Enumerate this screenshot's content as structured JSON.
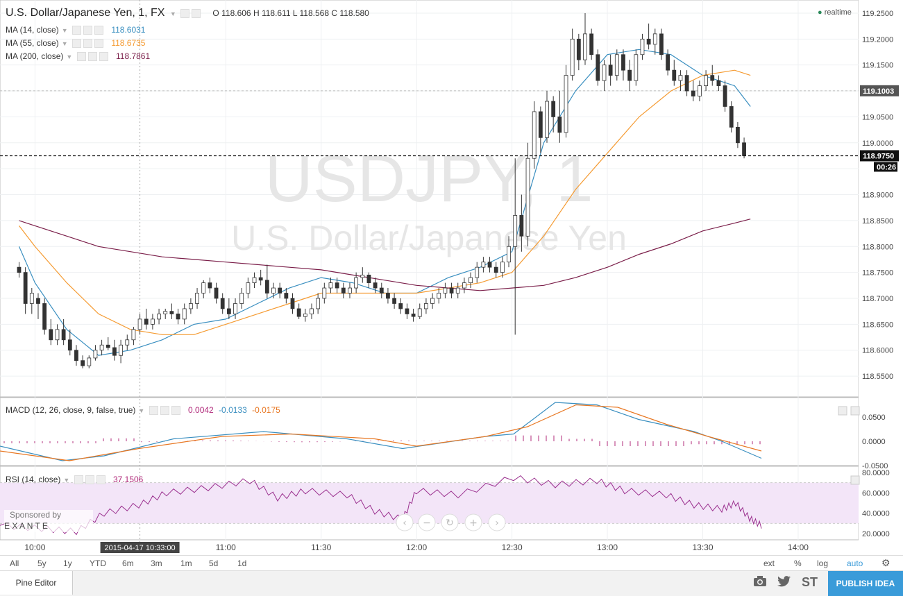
{
  "header": {
    "symbol_title": "U.S. Dollar/Japanese Yen, 1, FX",
    "ohlc": [
      {
        "k": "O",
        "v": "118.606"
      },
      {
        "k": "H",
        "v": "118.611"
      },
      {
        "k": "L",
        "v": "118.568"
      },
      {
        "k": "C",
        "v": "118.580"
      }
    ],
    "realtime_label": "realtime"
  },
  "indicators": [
    {
      "label": "MA (14, close)",
      "value": "118.6031",
      "color": "#3a8fc0"
    },
    {
      "label": "MA (55, close)",
      "value": "118.6735",
      "color": "#f59b32"
    },
    {
      "label": "MA (200, close)",
      "value": "118.7861",
      "color": "#7b1f4a"
    }
  ],
  "watermark": {
    "symbol": "USDJPY, 1",
    "name": "U.S. Dollar/Japanese Yen"
  },
  "price_axis": {
    "ticks": [
      "119.2500",
      "119.2000",
      "119.1500",
      "119.1003",
      "119.0500",
      "119.0000",
      "118.9750",
      "118.9000",
      "118.8500",
      "118.8000",
      "118.7500",
      "118.7000",
      "118.6500",
      "118.6000",
      "118.5500"
    ],
    "highlight_level": "119.1003",
    "last_price": "118.9750",
    "countdown": "00:26"
  },
  "macd": {
    "label": "MACD (12, 26, close, 9, false, true)",
    "values": [
      "0.0042",
      "-0.0133",
      "-0.0175"
    ],
    "colors": [
      "#b0297a",
      "#3a8fc0",
      "#e87722"
    ],
    "ticks": [
      "0.0500",
      "0.0000",
      "-0.0500"
    ]
  },
  "rsi": {
    "label": "RSI (14, close)",
    "value": "37.1506",
    "ticks": [
      "80.0000",
      "60.0000",
      "40.0000",
      "20.0000"
    ]
  },
  "sponsor": {
    "text": "Sponsored by",
    "brand": "E X A N T E"
  },
  "time_axis": {
    "ticks": [
      "10:00",
      "11:00",
      "11:30",
      "12:00",
      "12:30",
      "13:00",
      "13:30",
      "14:00"
    ],
    "cursor_label": "2015-04-17 10:33:00"
  },
  "ranges": [
    "All",
    "5y",
    "1y",
    "YTD",
    "6m",
    "3m",
    "1m",
    "5d",
    "1d"
  ],
  "right_options": [
    "ext",
    "%",
    "log",
    "auto"
  ],
  "bottom": {
    "pine_editor": "Pine Editor",
    "st_label": "ST",
    "publish": "PUBLISH IDEA"
  },
  "chart_data": {
    "type": "candlestick",
    "title": "U.S. Dollar/Japanese Yen, 1, FX",
    "ylim": [
      118.51,
      119.27
    ],
    "series": [
      {
        "name": "MA (14, close)",
        "x": [
          "09:55",
          "10:00",
          "10:10",
          "10:20",
          "10:30",
          "10:40",
          "10:50",
          "11:00",
          "11:10",
          "11:20",
          "11:30",
          "11:40",
          "11:50",
          "12:00",
          "12:10",
          "12:20",
          "12:30",
          "12:40",
          "12:50",
          "13:00",
          "13:10",
          "13:20",
          "13:30",
          "13:40",
          "13:45"
        ],
        "values": [
          118.8,
          118.73,
          118.64,
          118.59,
          118.6,
          118.62,
          118.65,
          118.66,
          118.69,
          118.72,
          118.74,
          118.73,
          118.71,
          118.71,
          118.74,
          118.76,
          118.79,
          119.0,
          119.1,
          119.17,
          119.18,
          119.17,
          119.13,
          119.11,
          119.07
        ]
      },
      {
        "name": "MA (55, close)",
        "x": [
          "09:55",
          "10:00",
          "10:10",
          "10:20",
          "10:30",
          "10:40",
          "10:50",
          "11:00",
          "11:10",
          "11:20",
          "11:30",
          "11:40",
          "11:50",
          "12:00",
          "12:10",
          "12:20",
          "12:30",
          "12:40",
          "12:50",
          "13:00",
          "13:10",
          "13:20",
          "13:30",
          "13:40",
          "13:45"
        ],
        "values": [
          118.84,
          118.8,
          118.73,
          118.67,
          118.64,
          118.63,
          118.63,
          118.65,
          118.67,
          118.69,
          118.71,
          118.71,
          118.71,
          118.71,
          118.72,
          118.73,
          118.75,
          118.82,
          118.91,
          118.98,
          119.05,
          119.1,
          119.13,
          119.14,
          119.13
        ]
      },
      {
        "name": "MA (200, close)",
        "x": [
          "09:55",
          "10:00",
          "10:10",
          "10:20",
          "10:30",
          "10:40",
          "10:50",
          "11:00",
          "11:10",
          "11:20",
          "11:30",
          "11:40",
          "11:50",
          "12:00",
          "12:10",
          "12:20",
          "12:30",
          "12:40",
          "12:50",
          "13:00",
          "13:10",
          "13:20",
          "13:30",
          "13:40",
          "13:45"
        ],
        "values": [
          118.85,
          118.84,
          118.82,
          118.8,
          118.79,
          118.78,
          118.775,
          118.77,
          118.765,
          118.76,
          118.755,
          118.745,
          118.735,
          118.725,
          118.72,
          118.715,
          118.72,
          118.725,
          118.74,
          118.76,
          118.785,
          118.805,
          118.83,
          118.845,
          118.853
        ]
      }
    ],
    "candles": [
      {
        "t": "09:55",
        "o": 118.76,
        "h": 118.77,
        "l": 118.74,
        "c": 118.75
      },
      {
        "t": "09:57",
        "o": 118.75,
        "h": 118.76,
        "l": 118.67,
        "c": 118.69
      },
      {
        "t": "09:59",
        "o": 118.69,
        "h": 118.72,
        "l": 118.67,
        "c": 118.71
      },
      {
        "t": "10:01",
        "o": 118.7,
        "h": 118.71,
        "l": 118.66,
        "c": 118.69
      },
      {
        "t": "10:03",
        "o": 118.69,
        "h": 118.7,
        "l": 118.63,
        "c": 118.64
      },
      {
        "t": "10:05",
        "o": 118.64,
        "h": 118.66,
        "l": 118.61,
        "c": 118.62
      },
      {
        "t": "10:07",
        "o": 118.62,
        "h": 118.65,
        "l": 118.61,
        "c": 118.64
      },
      {
        "t": "10:09",
        "o": 118.64,
        "h": 118.66,
        "l": 118.61,
        "c": 118.62
      },
      {
        "t": "10:11",
        "o": 118.62,
        "h": 118.64,
        "l": 118.59,
        "c": 118.6
      },
      {
        "t": "10:13",
        "o": 118.6,
        "h": 118.61,
        "l": 118.57,
        "c": 118.58
      },
      {
        "t": "10:15",
        "o": 118.58,
        "h": 118.59,
        "l": 118.565,
        "c": 118.57
      },
      {
        "t": "10:17",
        "o": 118.57,
        "h": 118.59,
        "l": 118.565,
        "c": 118.585
      },
      {
        "t": "10:19",
        "o": 118.585,
        "h": 118.61,
        "l": 118.58,
        "c": 118.6
      },
      {
        "t": "10:21",
        "o": 118.6,
        "h": 118.62,
        "l": 118.59,
        "c": 118.61
      },
      {
        "t": "10:23",
        "o": 118.61,
        "h": 118.625,
        "l": 118.6,
        "c": 118.605
      },
      {
        "t": "10:25",
        "o": 118.605,
        "h": 118.62,
        "l": 118.58,
        "c": 118.59
      },
      {
        "t": "10:27",
        "o": 118.59,
        "h": 118.62,
        "l": 118.575,
        "c": 118.61
      },
      {
        "t": "10:29",
        "o": 118.61,
        "h": 118.63,
        "l": 118.6,
        "c": 118.62
      },
      {
        "t": "10:31",
        "o": 118.62,
        "h": 118.645,
        "l": 118.61,
        "c": 118.64
      },
      {
        "t": "10:33",
        "o": 118.64,
        "h": 118.67,
        "l": 118.63,
        "c": 118.66
      },
      {
        "t": "10:35",
        "o": 118.66,
        "h": 118.68,
        "l": 118.64,
        "c": 118.65
      },
      {
        "t": "10:37",
        "o": 118.65,
        "h": 118.67,
        "l": 118.64,
        "c": 118.66
      },
      {
        "t": "10:39",
        "o": 118.66,
        "h": 118.68,
        "l": 118.65,
        "c": 118.67
      },
      {
        "t": "10:41",
        "o": 118.67,
        "h": 118.68,
        "l": 118.66,
        "c": 118.675
      },
      {
        "t": "10:43",
        "o": 118.675,
        "h": 118.69,
        "l": 118.66,
        "c": 118.67
      },
      {
        "t": "10:45",
        "o": 118.67,
        "h": 118.68,
        "l": 118.65,
        "c": 118.66
      },
      {
        "t": "10:47",
        "o": 118.66,
        "h": 118.69,
        "l": 118.65,
        "c": 118.68
      },
      {
        "t": "10:49",
        "o": 118.68,
        "h": 118.7,
        "l": 118.67,
        "c": 118.69
      },
      {
        "t": "10:51",
        "o": 118.69,
        "h": 118.72,
        "l": 118.68,
        "c": 118.71
      },
      {
        "t": "10:53",
        "o": 118.71,
        "h": 118.735,
        "l": 118.7,
        "c": 118.73
      },
      {
        "t": "10:55",
        "o": 118.73,
        "h": 118.74,
        "l": 118.71,
        "c": 118.72
      },
      {
        "t": "10:57",
        "o": 118.72,
        "h": 118.73,
        "l": 118.69,
        "c": 118.7
      },
      {
        "t": "10:59",
        "o": 118.7,
        "h": 118.71,
        "l": 118.67,
        "c": 118.68
      },
      {
        "t": "11:01",
        "o": 118.68,
        "h": 118.7,
        "l": 118.66,
        "c": 118.67
      },
      {
        "t": "11:03",
        "o": 118.67,
        "h": 118.7,
        "l": 118.66,
        "c": 118.69
      },
      {
        "t": "11:05",
        "o": 118.69,
        "h": 118.72,
        "l": 118.68,
        "c": 118.71
      },
      {
        "t": "11:07",
        "o": 118.71,
        "h": 118.74,
        "l": 118.7,
        "c": 118.73
      },
      {
        "t": "11:09",
        "o": 118.73,
        "h": 118.75,
        "l": 118.72,
        "c": 118.74
      },
      {
        "t": "11:11",
        "o": 118.74,
        "h": 118.755,
        "l": 118.725,
        "c": 118.735
      },
      {
        "t": "11:13",
        "o": 118.735,
        "h": 118.765,
        "l": 118.7,
        "c": 118.71
      },
      {
        "t": "11:15",
        "o": 118.71,
        "h": 118.73,
        "l": 118.7,
        "c": 118.72
      },
      {
        "t": "11:17",
        "o": 118.72,
        "h": 118.73,
        "l": 118.7,
        "c": 118.71
      },
      {
        "t": "11:19",
        "o": 118.71,
        "h": 118.72,
        "l": 118.69,
        "c": 118.7
      },
      {
        "t": "11:21",
        "o": 118.7,
        "h": 118.71,
        "l": 118.67,
        "c": 118.68
      },
      {
        "t": "11:23",
        "o": 118.68,
        "h": 118.69,
        "l": 118.66,
        "c": 118.665
      },
      {
        "t": "11:25",
        "o": 118.665,
        "h": 118.68,
        "l": 118.655,
        "c": 118.67
      },
      {
        "t": "11:27",
        "o": 118.67,
        "h": 118.69,
        "l": 118.66,
        "c": 118.68
      },
      {
        "t": "11:29",
        "o": 118.68,
        "h": 118.71,
        "l": 118.67,
        "c": 118.7
      },
      {
        "t": "11:31",
        "o": 118.7,
        "h": 118.73,
        "l": 118.69,
        "c": 118.72
      },
      {
        "t": "11:33",
        "o": 118.72,
        "h": 118.74,
        "l": 118.71,
        "c": 118.73
      },
      {
        "t": "11:35",
        "o": 118.73,
        "h": 118.74,
        "l": 118.71,
        "c": 118.72
      },
      {
        "t": "11:37",
        "o": 118.72,
        "h": 118.73,
        "l": 118.7,
        "c": 118.71
      },
      {
        "t": "11:39",
        "o": 118.71,
        "h": 118.73,
        "l": 118.7,
        "c": 118.72
      },
      {
        "t": "11:41",
        "o": 118.72,
        "h": 118.75,
        "l": 118.71,
        "c": 118.74
      },
      {
        "t": "11:43",
        "o": 118.74,
        "h": 118.76,
        "l": 118.73,
        "c": 118.745
      },
      {
        "t": "11:45",
        "o": 118.745,
        "h": 118.75,
        "l": 118.72,
        "c": 118.73
      },
      {
        "t": "11:47",
        "o": 118.73,
        "h": 118.74,
        "l": 118.71,
        "c": 118.72
      },
      {
        "t": "11:49",
        "o": 118.72,
        "h": 118.73,
        "l": 118.7,
        "c": 118.71
      },
      {
        "t": "11:51",
        "o": 118.71,
        "h": 118.72,
        "l": 118.69,
        "c": 118.7
      },
      {
        "t": "11:53",
        "o": 118.7,
        "h": 118.71,
        "l": 118.68,
        "c": 118.69
      },
      {
        "t": "11:55",
        "o": 118.69,
        "h": 118.7,
        "l": 118.67,
        "c": 118.68
      },
      {
        "t": "11:57",
        "o": 118.68,
        "h": 118.69,
        "l": 118.66,
        "c": 118.67
      },
      {
        "t": "11:59",
        "o": 118.67,
        "h": 118.68,
        "l": 118.655,
        "c": 118.665
      },
      {
        "t": "12:01",
        "o": 118.665,
        "h": 118.69,
        "l": 118.66,
        "c": 118.68
      },
      {
        "t": "12:03",
        "o": 118.68,
        "h": 118.7,
        "l": 118.67,
        "c": 118.69
      },
      {
        "t": "12:05",
        "o": 118.69,
        "h": 118.71,
        "l": 118.68,
        "c": 118.7
      },
      {
        "t": "12:07",
        "o": 118.7,
        "h": 118.72,
        "l": 118.69,
        "c": 118.71
      },
      {
        "t": "12:09",
        "o": 118.71,
        "h": 118.73,
        "l": 118.7,
        "c": 118.72
      },
      {
        "t": "12:11",
        "o": 118.72,
        "h": 118.73,
        "l": 118.7,
        "c": 118.71
      },
      {
        "t": "12:13",
        "o": 118.71,
        "h": 118.73,
        "l": 118.7,
        "c": 118.72
      },
      {
        "t": "12:15",
        "o": 118.72,
        "h": 118.74,
        "l": 118.71,
        "c": 118.73
      },
      {
        "t": "12:17",
        "o": 118.73,
        "h": 118.75,
        "l": 118.72,
        "c": 118.74
      },
      {
        "t": "12:19",
        "o": 118.74,
        "h": 118.77,
        "l": 118.73,
        "c": 118.76
      },
      {
        "t": "12:21",
        "o": 118.76,
        "h": 118.78,
        "l": 118.75,
        "c": 118.77
      },
      {
        "t": "12:23",
        "o": 118.77,
        "h": 118.78,
        "l": 118.75,
        "c": 118.76
      },
      {
        "t": "12:25",
        "o": 118.76,
        "h": 118.77,
        "l": 118.74,
        "c": 118.75
      },
      {
        "t": "12:27",
        "o": 118.75,
        "h": 118.78,
        "l": 118.74,
        "c": 118.77
      },
      {
        "t": "12:29",
        "o": 118.77,
        "h": 118.82,
        "l": 118.76,
        "c": 118.8
      },
      {
        "t": "12:31",
        "o": 118.8,
        "h": 118.97,
        "l": 118.63,
        "c": 118.86
      },
      {
        "t": "12:33",
        "o": 118.86,
        "h": 118.9,
        "l": 118.79,
        "c": 118.82
      },
      {
        "t": "12:35",
        "o": 118.82,
        "h": 119.0,
        "l": 118.8,
        "c": 118.97
      },
      {
        "t": "12:37",
        "o": 118.97,
        "h": 119.08,
        "l": 118.95,
        "c": 119.06
      },
      {
        "t": "12:39",
        "o": 119.06,
        "h": 119.07,
        "l": 118.98,
        "c": 119.01
      },
      {
        "t": "12:41",
        "o": 119.01,
        "h": 119.1,
        "l": 119.0,
        "c": 119.08
      },
      {
        "t": "12:43",
        "o": 119.08,
        "h": 119.09,
        "l": 119.02,
        "c": 119.05
      },
      {
        "t": "12:45",
        "o": 119.05,
        "h": 119.1,
        "l": 119.0,
        "c": 119.02
      },
      {
        "t": "12:47",
        "o": 119.02,
        "h": 119.15,
        "l": 119.01,
        "c": 119.13
      },
      {
        "t": "12:49",
        "o": 119.13,
        "h": 119.22,
        "l": 119.12,
        "c": 119.2
      },
      {
        "t": "12:51",
        "o": 119.2,
        "h": 119.21,
        "l": 119.14,
        "c": 119.16
      },
      {
        "t": "12:53",
        "o": 119.16,
        "h": 119.25,
        "l": 119.15,
        "c": 119.21
      },
      {
        "t": "12:55",
        "o": 119.21,
        "h": 119.22,
        "l": 119.16,
        "c": 119.17
      },
      {
        "t": "12:57",
        "o": 119.17,
        "h": 119.18,
        "l": 119.11,
        "c": 119.12
      },
      {
        "t": "12:59",
        "o": 119.12,
        "h": 119.16,
        "l": 119.1,
        "c": 119.15
      },
      {
        "t": "13:01",
        "o": 119.15,
        "h": 119.17,
        "l": 119.11,
        "c": 119.13
      },
      {
        "t": "13:03",
        "o": 119.13,
        "h": 119.18,
        "l": 119.12,
        "c": 119.17
      },
      {
        "t": "13:05",
        "o": 119.17,
        "h": 119.18,
        "l": 119.12,
        "c": 119.14
      },
      {
        "t": "13:07",
        "o": 119.14,
        "h": 119.16,
        "l": 119.1,
        "c": 119.12
      },
      {
        "t": "13:09",
        "o": 119.12,
        "h": 119.18,
        "l": 119.11,
        "c": 119.17
      },
      {
        "t": "13:11",
        "o": 119.17,
        "h": 119.21,
        "l": 119.16,
        "c": 119.2
      },
      {
        "t": "13:13",
        "o": 119.2,
        "h": 119.23,
        "l": 119.18,
        "c": 119.19
      },
      {
        "t": "13:15",
        "o": 119.19,
        "h": 119.22,
        "l": 119.17,
        "c": 119.21
      },
      {
        "t": "13:17",
        "o": 119.21,
        "h": 119.22,
        "l": 119.16,
        "c": 119.17
      },
      {
        "t": "13:19",
        "o": 119.17,
        "h": 119.18,
        "l": 119.13,
        "c": 119.14
      },
      {
        "t": "13:21",
        "o": 119.14,
        "h": 119.16,
        "l": 119.11,
        "c": 119.12
      },
      {
        "t": "13:23",
        "o": 119.12,
        "h": 119.14,
        "l": 119.1,
        "c": 119.13
      },
      {
        "t": "13:25",
        "o": 119.13,
        "h": 119.14,
        "l": 119.09,
        "c": 119.1
      },
      {
        "t": "13:27",
        "o": 119.1,
        "h": 119.12,
        "l": 119.08,
        "c": 119.09
      },
      {
        "t": "13:29",
        "o": 119.09,
        "h": 119.12,
        "l": 119.08,
        "c": 119.11
      },
      {
        "t": "13:31",
        "o": 119.11,
        "h": 119.14,
        "l": 119.1,
        "c": 119.13
      },
      {
        "t": "13:33",
        "o": 119.13,
        "h": 119.15,
        "l": 119.11,
        "c": 119.12
      },
      {
        "t": "13:35",
        "o": 119.12,
        "h": 119.13,
        "l": 119.1,
        "c": 119.11
      },
      {
        "t": "13:37",
        "o": 119.11,
        "h": 119.12,
        "l": 119.06,
        "c": 119.07
      },
      {
        "t": "13:39",
        "o": 119.07,
        "h": 119.08,
        "l": 119.02,
        "c": 119.03
      },
      {
        "t": "13:41",
        "o": 119.03,
        "h": 119.04,
        "l": 118.99,
        "c": 119.0
      },
      {
        "t": "13:43",
        "o": 119.0,
        "h": 119.01,
        "l": 118.97,
        "c": 118.975
      }
    ]
  }
}
